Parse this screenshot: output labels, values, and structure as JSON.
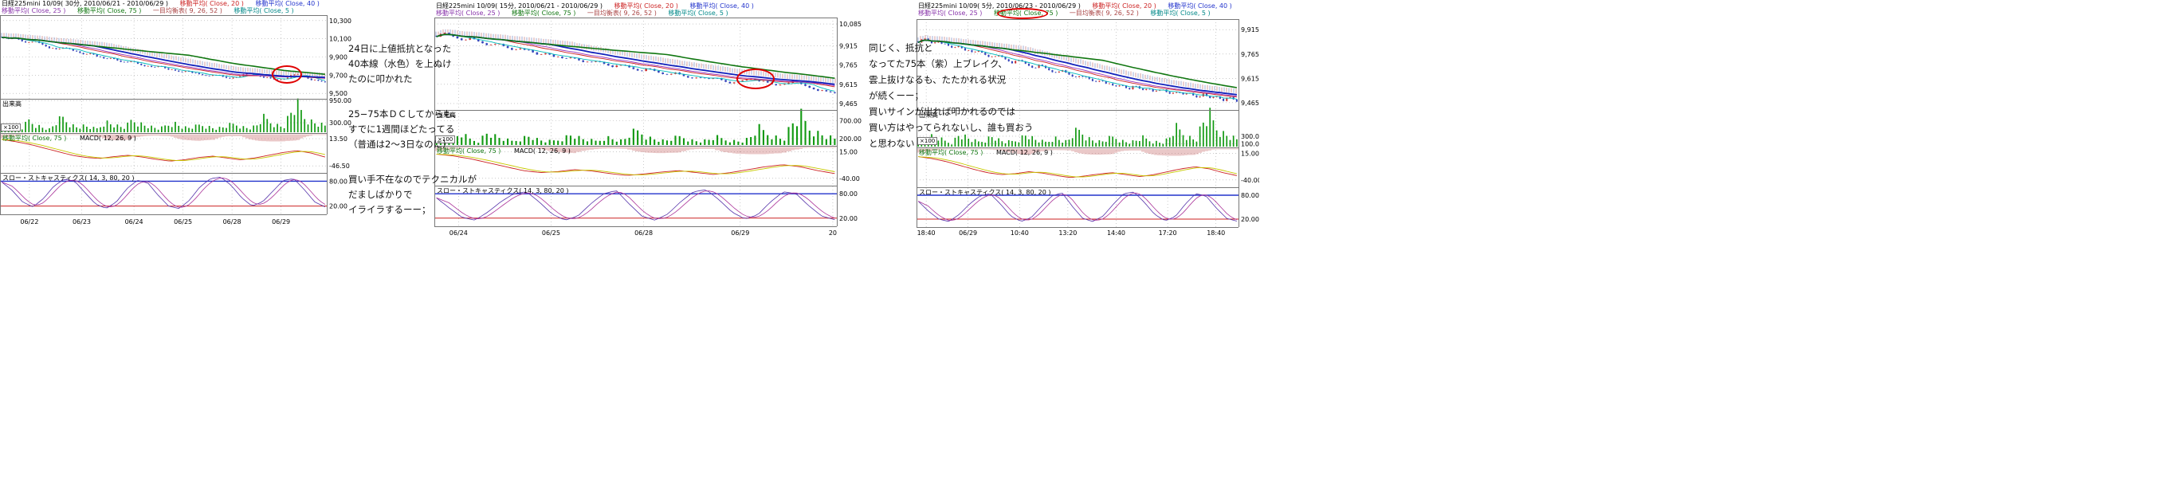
{
  "panels": [
    {
      "title_row1": [
        {
          "text": "日経225mini 10/09( 30分, 2010/06/21 - 2010/06/29 )",
          "color": "#000000"
        },
        {
          "text": "移動平均( Close, 20 )",
          "color": "#cc2222"
        },
        {
          "text": "移動平均( Close, 40 )",
          "color": "#2233cc"
        }
      ],
      "title_row2": [
        {
          "text": "移動平均( Close, 25 )",
          "color": "#8833aa"
        },
        {
          "text": "移動平均( Close, 75 )",
          "color": "#117711"
        },
        {
          "text": "一目均衡表( 9, 26, 52 )",
          "color": "#aa4444"
        },
        {
          "text": "移動平均( Close, 5 )",
          "color": "#008888"
        }
      ],
      "panes": {
        "volume_label": "出来高",
        "macd_label_ma": "移動平均( Close, 75 )",
        "macd_label_ma_color": "#117711",
        "macd_label": "MACD( 12, 26, 9 )",
        "stoch_label": "スロー・ストキャスティクス( 14, 3, 80, 20 )",
        "volume_unit": "×100"
      }
    },
    {
      "title_row1": [
        {
          "text": "日経225mini 10/09( 15分, 2010/06/21 - 2010/06/29 )",
          "color": "#000000"
        },
        {
          "text": "移動平均( Close, 20 )",
          "color": "#cc2222"
        },
        {
          "text": "移動平均( Close, 40 )",
          "color": "#2233cc"
        }
      ],
      "title_row2": [
        {
          "text": "移動平均( Close, 25 )",
          "color": "#8833aa"
        },
        {
          "text": "移動平均( Close, 75 )",
          "color": "#117711"
        },
        {
          "text": "一目均衡表( 9, 26, 52 )",
          "color": "#aa4444"
        },
        {
          "text": "移動平均( Close, 5 )",
          "color": "#008888"
        }
      ],
      "panes": {
        "volume_label": "出来高",
        "macd_label_ma": "移動平均( Close, 75 )",
        "macd_label_ma_color": "#117711",
        "macd_label": "MACD( 12, 26, 9 )",
        "stoch_label": "スロー・ストキャスティクス( 14, 3, 80, 20 )",
        "volume_unit": "×100"
      }
    },
    {
      "title_row1": [
        {
          "text": "日経225mini 10/09( 5分, 2010/06/23 - 2010/06/29 )",
          "color": "#000000"
        },
        {
          "text": "移動平均( Close, 20 )",
          "color": "#cc2222"
        },
        {
          "text": "移動平均( Close, 40 )",
          "color": "#2233cc"
        }
      ],
      "title_row2": [
        {
          "text": "移動平均( Close, 25 )",
          "color": "#8833aa"
        },
        {
          "text": "移動平均( Close, 75 )",
          "color": "#117711"
        },
        {
          "text": "一目均衡表( 9, 26, 52 )",
          "color": "#aa4444"
        },
        {
          "text": "移動平均( Close, 5 )",
          "color": "#008888"
        }
      ],
      "panes": {
        "volume_label": "出来高",
        "macd_label_ma": "移動平均( Close, 75 )",
        "macd_label_ma_color": "#117711",
        "macd_label": "MACD( 12, 26, 9 )",
        "stoch_label": "スロー・ストキャスティクス( 14, 3, 80, 20 )",
        "volume_unit": "×100"
      }
    }
  ],
  "chart_data": [
    {
      "type": "candlestick",
      "title": "日経225mini 10/09",
      "timeframe": "30分",
      "period": "2010/06/21 - 2010/06/29",
      "price_axis": {
        "min": 9440,
        "max": 10360,
        "ticks": [
          {
            "label": "10,300",
            "value": 10300
          },
          {
            "label": "10,100",
            "value": 10100
          },
          {
            "label": "9,900",
            "value": 9900
          },
          {
            "label": "9,700",
            "value": 9700
          },
          {
            "label": "9,500",
            "value": 9500
          }
        ]
      },
      "close": [
        10120,
        10095,
        10110,
        10075,
        10055,
        10070,
        10035,
        10000,
        9980,
        10005,
        9990,
        9950,
        9925,
        9945,
        9905,
        9875,
        9890,
        9860,
        9835,
        9855,
        9820,
        9800,
        9782,
        9805,
        9772,
        9750,
        9732,
        9752,
        9722,
        9700,
        9692,
        9712,
        9682,
        9660,
        9682,
        9702,
        9722,
        9700,
        9680,
        9662,
        9645,
        9662,
        9692,
        9712,
        9682,
        9652,
        9635,
        9622
      ],
      "volume_axis": {
        "max": 1000,
        "ticks": [
          {
            "label": "950.00",
            "value": 950
          },
          {
            "label": "300.00",
            "value": 300
          }
        ]
      },
      "volume": [
        320,
        180,
        240,
        150,
        420,
        260,
        180,
        120,
        350,
        500,
        280,
        190,
        230,
        160,
        140,
        380,
        290,
        210,
        170,
        450,
        320,
        240,
        180,
        130,
        260,
        340,
        220,
        160,
        190,
        280,
        210,
        150,
        170,
        240,
        300,
        200,
        160,
        220,
        480,
        380,
        260,
        200,
        640,
        860,
        540,
        380,
        300,
        240
      ],
      "macd_axis": {
        "min": -62,
        "max": 26,
        "ticks": [
          {
            "label": "13.50",
            "value": 13.5
          },
          {
            "label": "-46.50",
            "value": -46.5
          }
        ]
      },
      "macd": [
        12,
        7,
        1,
        -7,
        -15,
        -23,
        -28,
        -30,
        -26,
        -23,
        -27,
        -32,
        -36,
        -33,
        -28,
        -25,
        -29,
        -33,
        -29,
        -23,
        -17,
        -13,
        -18,
        -27
      ],
      "stoch_axis": {
        "min": 0,
        "max": 100,
        "upper": 80,
        "lower": 20,
        "ticks": [
          {
            "label": "80.00",
            "value": 80
          },
          {
            "label": "20.00",
            "value": 20
          }
        ]
      },
      "stoch": [
        78,
        58,
        30,
        18,
        38,
        68,
        85,
        80,
        52,
        25,
        14,
        30,
        62,
        82,
        76,
        46,
        20,
        14,
        34,
        66,
        86,
        90,
        70,
        40,
        20,
        30,
        56,
        82,
        86,
        60,
        30,
        18
      ],
      "x_ticks": [
        {
          "label": "06/22",
          "pos": 0.09
        },
        {
          "label": "06/23",
          "pos": 0.25
        },
        {
          "label": "06/24",
          "pos": 0.41
        },
        {
          "label": "06/25",
          "pos": 0.56
        },
        {
          "label": "06/28",
          "pos": 0.71
        },
        {
          "label": "06/29",
          "pos": 0.86
        }
      ]
    },
    {
      "type": "candlestick",
      "title": "日経225mini 10/09",
      "timeframe": "15分",
      "period": "2010/06/21 - 2010/06/29",
      "price_axis": {
        "min": 9415,
        "max": 10135,
        "ticks": [
          {
            "label": "10,085",
            "value": 10085
          },
          {
            "label": "9,915",
            "value": 9915
          },
          {
            "label": "9,765",
            "value": 9765
          },
          {
            "label": "9,615",
            "value": 9615
          },
          {
            "label": "9,465",
            "value": 9465
          }
        ]
      },
      "close": [
        9992,
        10012,
        9986,
        9962,
        9976,
        9946,
        9921,
        9936,
        9906,
        9881,
        9901,
        9871,
        9841,
        9861,
        9831,
        9811,
        9826,
        9801,
        9781,
        9796,
        9771,
        9751,
        9766,
        9741,
        9721,
        9736,
        9711,
        9691,
        9706,
        9681,
        9661,
        9676,
        9651,
        9666,
        9641,
        9621,
        9641,
        9661,
        9646,
        9626,
        9606,
        9621,
        9641,
        9616,
        9591,
        9571,
        9556,
        9546
      ],
      "volume_axis": {
        "max": 1000,
        "ticks": [
          {
            "label": "700.00",
            "value": 700
          },
          {
            "label": "200.00",
            "value": 200
          }
        ]
      },
      "volume": [
        180,
        120,
        260,
        340,
        200,
        150,
        420,
        280,
        190,
        140,
        230,
        310,
        180,
        130,
        160,
        240,
        360,
        220,
        170,
        140,
        280,
        200,
        150,
        380,
        460,
        260,
        190,
        150,
        220,
        300,
        180,
        140,
        170,
        260,
        200,
        160,
        130,
        240,
        520,
        400,
        280,
        200,
        680,
        880,
        560,
        400,
        300,
        220
      ],
      "macd_axis": {
        "min": -55,
        "max": 27,
        "ticks": [
          {
            "label": "15.00",
            "value": 15
          },
          {
            "label": "-40.00",
            "value": -40
          }
        ]
      },
      "macd": [
        10,
        6,
        0,
        -8,
        -16,
        -24,
        -28,
        -26,
        -22,
        -25,
        -30,
        -34,
        -31,
        -27,
        -24,
        -28,
        -32,
        -28,
        -22,
        -16,
        -12,
        -16,
        -24,
        -30
      ],
      "stoch_axis": {
        "min": 0,
        "max": 100,
        "upper": 80,
        "lower": 20,
        "ticks": [
          {
            "label": "80.00",
            "value": 80
          },
          {
            "label": "20.00",
            "value": 20
          }
        ]
      },
      "stoch": [
        70,
        45,
        22,
        15,
        35,
        60,
        80,
        85,
        60,
        30,
        15,
        25,
        55,
        80,
        88,
        55,
        25,
        15,
        30,
        60,
        85,
        90,
        65,
        35,
        18,
        28,
        60,
        85,
        80,
        50,
        25,
        16
      ],
      "x_ticks": [
        {
          "label": "06/24",
          "pos": 0.06
        },
        {
          "label": "06/25",
          "pos": 0.29
        },
        {
          "label": "06/28",
          "pos": 0.52
        },
        {
          "label": "06/29",
          "pos": 0.76
        },
        {
          "label": "20",
          "pos": 0.99
        }
      ]
    },
    {
      "type": "candlestick",
      "title": "日経225mini 10/09",
      "timeframe": "5分",
      "period": "2010/06/23 - 2010/06/29",
      "price_axis": {
        "min": 9420,
        "max": 9980,
        "ticks": [
          {
            "label": "9,915",
            "value": 9915
          },
          {
            "label": "9,765",
            "value": 9765
          },
          {
            "label": "9,615",
            "value": 9615
          },
          {
            "label": "9,465",
            "value": 9465
          }
        ]
      },
      "close": [
        9842,
        9856,
        9831,
        9846,
        9821,
        9801,
        9816,
        9791,
        9771,
        9786,
        9761,
        9741,
        9756,
        9731,
        9711,
        9726,
        9701,
        9681,
        9696,
        9671,
        9651,
        9666,
        9641,
        9621,
        9636,
        9611,
        9591,
        9606,
        9581,
        9561,
        9576,
        9551,
        9566,
        9541,
        9556,
        9531,
        9546,
        9521,
        9536,
        9511,
        9526,
        9501,
        9516,
        9491,
        9506,
        9481,
        9496,
        9471
      ],
      "volume_axis": {
        "max": 1000,
        "ticks": [
          {
            "label": "300.00",
            "value": 300
          },
          {
            "label": "100.00",
            "value": 100
          }
        ]
      },
      "volume": [
        220,
        150,
        320,
        260,
        180,
        140,
        380,
        300,
        200,
        160,
        240,
        340,
        200,
        150,
        180,
        260,
        400,
        240,
        180,
        150,
        300,
        220,
        160,
        420,
        500,
        280,
        200,
        160,
        240,
        320,
        200,
        150,
        180,
        280,
        220,
        170,
        140,
        260,
        560,
        440,
        300,
        220,
        720,
        900,
        600,
        420,
        320,
        240
      ],
      "macd_axis": {
        "min": -55,
        "max": 27,
        "ticks": [
          {
            "label": "15.00",
            "value": 15
          },
          {
            "label": "-40.00",
            "value": -40
          }
        ]
      },
      "macd": [
        8,
        4,
        -2,
        -10,
        -18,
        -25,
        -29,
        -27,
        -23,
        -26,
        -31,
        -35,
        -32,
        -28,
        -25,
        -29,
        -33,
        -29,
        -23,
        -17,
        -13,
        -17,
        -25,
        -31
      ],
      "stoch_axis": {
        "min": 0,
        "max": 100,
        "upper": 80,
        "lower": 20,
        "ticks": [
          {
            "label": "80.00",
            "value": 80
          },
          {
            "label": "20.00",
            "value": 20
          }
        ]
      },
      "stoch": [
        65,
        40,
        20,
        14,
        32,
        58,
        78,
        84,
        58,
        28,
        14,
        24,
        52,
        78,
        86,
        52,
        22,
        14,
        28,
        58,
        84,
        88,
        62,
        32,
        16,
        26,
        58,
        84,
        78,
        48,
        22,
        15
      ],
      "x_ticks": [
        {
          "label": "18:40",
          "pos": 0.03
        },
        {
          "label": "06/29",
          "pos": 0.16
        },
        {
          "label": "10:40",
          "pos": 0.32
        },
        {
          "label": "13:20",
          "pos": 0.47
        },
        {
          "label": "14:40",
          "pos": 0.62
        },
        {
          "label": "17:20",
          "pos": 0.78
        },
        {
          "label": "18:40",
          "pos": 0.93
        }
      ]
    }
  ],
  "annotations": {
    "left": {
      "lines": [
        "24日に上値抵抗となった",
        "40本線（水色）を上ぬけ",
        "たのに叩かれた",
        "25−75本ＤＣしてからも、",
        "すでに1週間ほどたってる",
        "（普通は2〜3日なのに）",
        "買い手不在なのでテクニカルが",
        "だましばかりで",
        "イライラするーー；"
      ]
    },
    "right": {
      "lines": [
        "同じく、抵抗と",
        "なってた75本（紫）上ブレイク、",
        "雲上抜けなるも、たたかれる状況",
        "が続くーー；",
        "買いサインが出れば叩かれるのでは",
        "買い方はやってられないし、誰も買おう",
        "と思わない"
      ]
    }
  }
}
